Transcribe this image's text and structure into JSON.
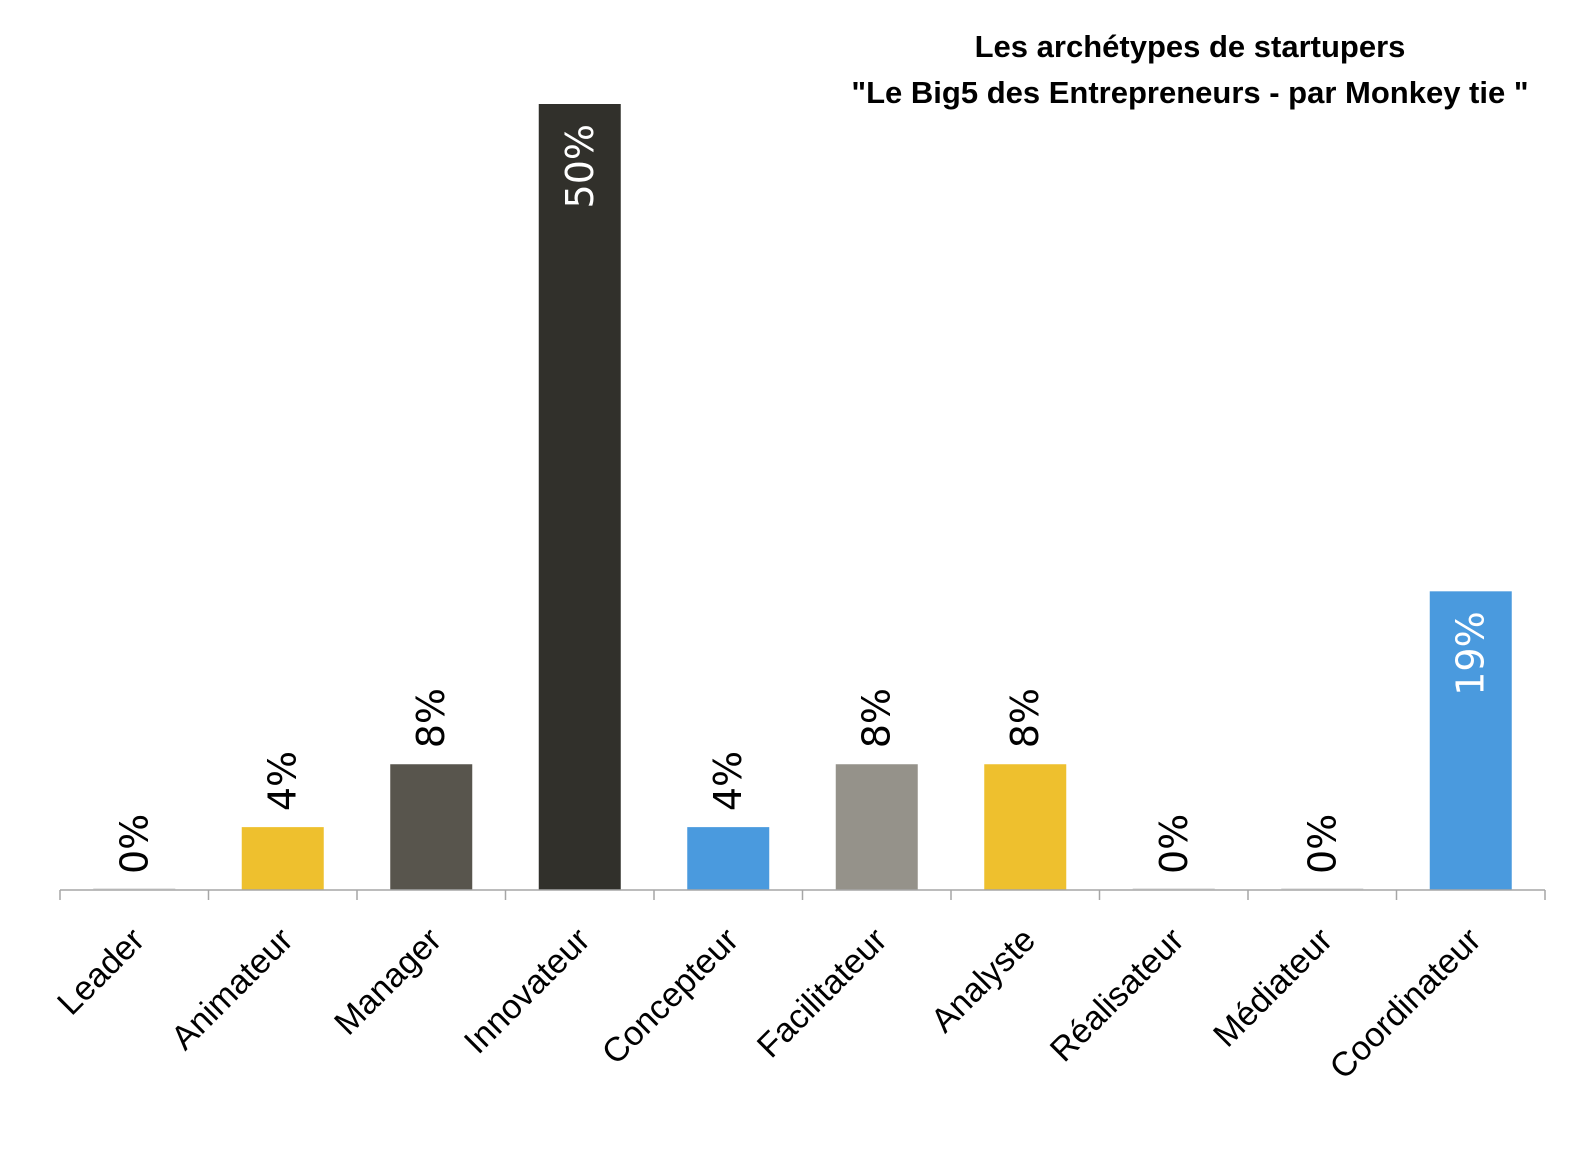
{
  "chart_data": {
    "type": "bar",
    "title": "Les archétypes de startupers",
    "subtitle": "\"Le Big5 des Entrepreneurs - par Monkey tie \"",
    "categories": [
      "Leader",
      "Animateur",
      "Manager",
      "Innovateur",
      "Concepteur",
      "Facilitateur",
      "Analyste",
      "Réalisateur",
      "Médiateur",
      "Coordinateur"
    ],
    "values": [
      0,
      4,
      8,
      50,
      4,
      8,
      8,
      0,
      0,
      19
    ],
    "value_labels": [
      "0%",
      "4%",
      "8%",
      "50%",
      "4%",
      "8%",
      "8%",
      "0%",
      "0%",
      "19%"
    ],
    "bar_colors": [
      "#e6e6e6",
      "#eec02e",
      "#58554d",
      "#31302b",
      "#4a9ade",
      "#95928a",
      "#eec02e",
      "#e6e6e6",
      "#e6e6e6",
      "#4a9ade"
    ],
    "label_colors": [
      "#000000",
      "#000000",
      "#000000",
      "#ffffff",
      "#000000",
      "#000000",
      "#000000",
      "#000000",
      "#000000",
      "#ffffff"
    ],
    "label_inside": [
      false,
      false,
      false,
      true,
      false,
      false,
      false,
      false,
      false,
      true
    ],
    "ylim": [
      0,
      50
    ],
    "grid": false,
    "legend": "none",
    "axis_color": "#a6a6a6"
  }
}
